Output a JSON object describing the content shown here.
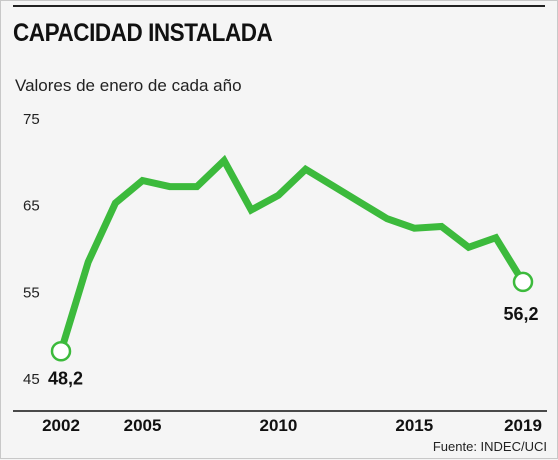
{
  "header": {
    "title": "CAPACIDAD INSTALADA",
    "subtitle": "Valores de enero de cada año"
  },
  "footer": {
    "source": "Fuente: INDEC/UCI"
  },
  "colors": {
    "line": "#3cba3c",
    "marker_fill": "#ffffff",
    "axis": "#111111",
    "background": "#f5f5f5"
  },
  "chart_data": {
    "type": "line",
    "title": "CAPACIDAD INSTALADA",
    "subtitle": "Valores de enero de cada año",
    "xlabel": "",
    "ylabel": "",
    "x": [
      2002,
      2003,
      2004,
      2005,
      2006,
      2007,
      2008,
      2009,
      2010,
      2011,
      2012,
      2013,
      2014,
      2015,
      2016,
      2017,
      2018,
      2019
    ],
    "series": [
      {
        "values": [
          48.2,
          58.5,
          65.3,
          67.9,
          67.2,
          67.2,
          70.2,
          64.5,
          66.2,
          69.2,
          67.3,
          65.4,
          63.5,
          62.4,
          62.6,
          60.2,
          61.3,
          56.2
        ]
      }
    ],
    "ylim": [
      45,
      75
    ],
    "y_ticks": [
      "75",
      "65",
      "55",
      "45"
    ],
    "y_tick_values": [
      75,
      65,
      55,
      45
    ],
    "x_ticks": [
      "2002",
      "2005",
      "2010",
      "2015",
      "2019"
    ],
    "x_tick_values": [
      2002,
      2005,
      2010,
      2015,
      2019
    ],
    "data_labels": [
      {
        "x": 2002,
        "text": "48,2"
      },
      {
        "x": 2019,
        "text": "56,2"
      }
    ],
    "grid": false,
    "legend": "none"
  }
}
